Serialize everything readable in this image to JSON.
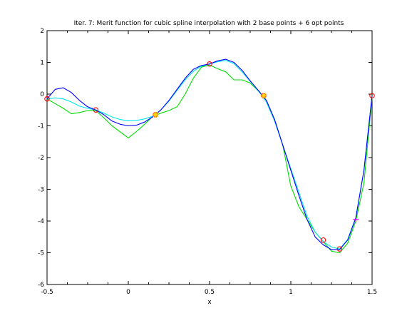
{
  "chart_data": {
    "type": "line",
    "title": "Iter. 7: Merit function for cubic spline interpolation with 2 base points + 6 opt points",
    "xlabel": "x",
    "ylabel": "",
    "xlim": [
      -0.5,
      1.5
    ],
    "ylim": [
      -6,
      2
    ],
    "xticks": [
      -0.5,
      0,
      0.5,
      1,
      1.5
    ],
    "xtick_labels": [
      "-0.5",
      "0",
      "0.5",
      "1",
      "1.5"
    ],
    "yticks": [
      -6,
      -5,
      -4,
      -3,
      -2,
      -1,
      0,
      1,
      2
    ],
    "ytick_labels": [
      "-6",
      "-5",
      "-4",
      "-3",
      "-2",
      "-1",
      "0",
      "1",
      "2"
    ],
    "grid": false,
    "series": [
      {
        "color": "#0000ff",
        "x": [
          -0.5,
          -0.45,
          -0.4,
          -0.35,
          -0.3,
          -0.25,
          -0.2,
          -0.15,
          -0.1,
          -0.05,
          0,
          0.05,
          0.1,
          0.15,
          0.2,
          0.25,
          0.3,
          0.35,
          0.4,
          0.45,
          0.5,
          0.55,
          0.6,
          0.65,
          0.7,
          0.75,
          0.8,
          0.85,
          0.9,
          0.95,
          1.0,
          1.05,
          1.1,
          1.15,
          1.2,
          1.25,
          1.3,
          1.35,
          1.4,
          1.45,
          1.5
        ],
        "values": [
          -0.15,
          0.15,
          0.2,
          0.05,
          -0.2,
          -0.4,
          -0.5,
          -0.65,
          -0.85,
          -0.95,
          -1.0,
          -0.98,
          -0.88,
          -0.72,
          -0.5,
          -0.2,
          0.15,
          0.5,
          0.78,
          0.9,
          0.95,
          1.05,
          1.1,
          1.0,
          0.75,
          0.42,
          0.12,
          -0.2,
          -0.8,
          -1.6,
          -2.4,
          -3.2,
          -3.95,
          -4.5,
          -4.75,
          -4.9,
          -4.9,
          -4.6,
          -3.9,
          -2.4,
          -0.05
        ]
      },
      {
        "color": "#00e5ee",
        "x": [
          -0.5,
          -0.45,
          -0.4,
          -0.35,
          -0.3,
          -0.25,
          -0.2,
          -0.15,
          -0.1,
          -0.05,
          0,
          0.05,
          0.1,
          0.15,
          0.2,
          0.25,
          0.3,
          0.35,
          0.4,
          0.45,
          0.5,
          0.55,
          0.6,
          0.65,
          0.7,
          0.75,
          0.8,
          0.85,
          0.9,
          0.95,
          1.0,
          1.05,
          1.1,
          1.15,
          1.2,
          1.25,
          1.3,
          1.35,
          1.4,
          1.45,
          1.5
        ],
        "values": [
          -0.15,
          -0.12,
          -0.15,
          -0.25,
          -0.38,
          -0.45,
          -0.5,
          -0.6,
          -0.72,
          -0.8,
          -0.84,
          -0.83,
          -0.78,
          -0.7,
          -0.5,
          -0.22,
          0.12,
          0.45,
          0.72,
          0.88,
          0.95,
          1.02,
          1.06,
          0.96,
          0.7,
          0.4,
          0.1,
          -0.25,
          -0.85,
          -1.6,
          -2.35,
          -3.1,
          -3.85,
          -4.35,
          -4.65,
          -4.82,
          -4.88,
          -4.58,
          -3.88,
          -2.4,
          -0.05
        ]
      },
      {
        "color": "#00dd00",
        "x": [
          -0.5,
          -0.4,
          -0.35,
          -0.3,
          -0.25,
          -0.2,
          -0.15,
          -0.1,
          0,
          0.05,
          0.1,
          0.15,
          0.2,
          0.25,
          0.3,
          0.35,
          0.4,
          0.45,
          0.5,
          0.55,
          0.6,
          0.65,
          0.7,
          0.75,
          0.8,
          0.85,
          0.9,
          0.95,
          1.0,
          1.05,
          1.1,
          1.15,
          1.2,
          1.25,
          1.3,
          1.35,
          1.4,
          1.45,
          1.5
        ],
        "values": [
          -0.15,
          -0.45,
          -0.62,
          -0.58,
          -0.52,
          -0.52,
          -0.75,
          -1.0,
          -1.38,
          -1.18,
          -0.95,
          -0.7,
          -0.6,
          -0.52,
          -0.4,
          0.0,
          0.5,
          0.85,
          0.92,
          0.8,
          0.7,
          0.45,
          0.45,
          0.35,
          0.1,
          -0.2,
          -0.8,
          -1.6,
          -2.9,
          -3.55,
          -3.95,
          -4.35,
          -4.65,
          -4.95,
          -5.0,
          -4.7,
          -4.0,
          -2.8,
          -0.1
        ]
      }
    ],
    "markers": {
      "red_circles": [
        {
          "x": -0.5,
          "y": -0.15
        },
        {
          "x": -0.2,
          "y": -0.5
        },
        {
          "x": 0.5,
          "y": 0.95
        },
        {
          "x": 1.2,
          "y": -4.6
        },
        {
          "x": 1.3,
          "y": -4.88
        },
        {
          "x": 1.5,
          "y": -0.05
        }
      ],
      "yellow_stars": [
        {
          "x": 0.167,
          "y": -0.65
        },
        {
          "x": 0.833,
          "y": -0.05
        }
      ],
      "magenta_plus": [
        {
          "x": 1.4,
          "y": -3.95
        }
      ]
    }
  }
}
